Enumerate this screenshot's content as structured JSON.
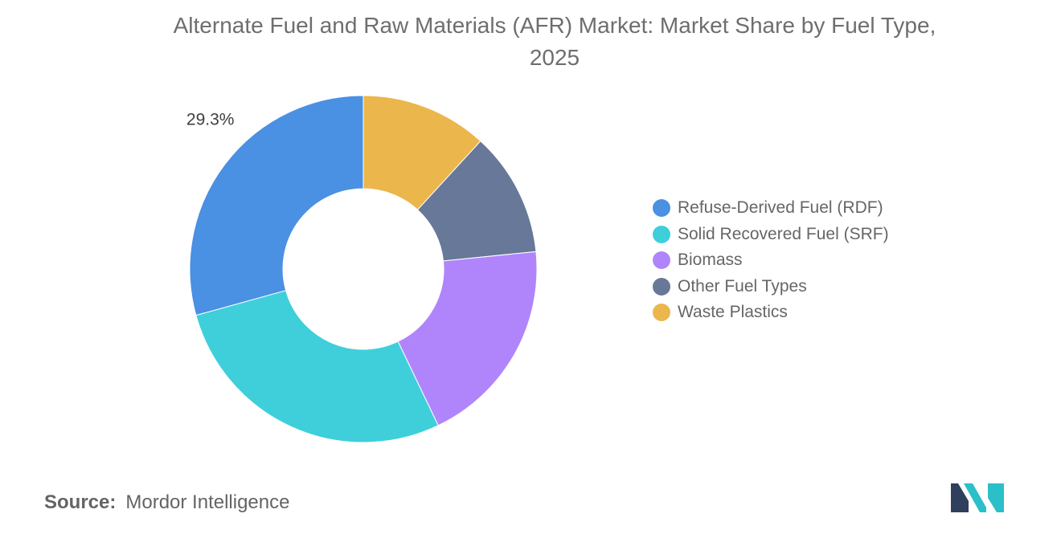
{
  "title_lines": [
    "Alternate Fuel and Raw Materials (AFR) Market: Market Share by Fuel Type,",
    "2025"
  ],
  "chart_data": {
    "type": "pie",
    "variant": "donut",
    "title": "Alternate Fuel and Raw Materials (AFR) Market: Market Share by Fuel Type, 2025",
    "slices": [
      {
        "label": "Waste Plastics",
        "value": 11.8,
        "color": "#EBB64C"
      },
      {
        "label": "Other Fuel Types",
        "value": 11.6,
        "color": "#677898"
      },
      {
        "label": "Biomass",
        "value": 19.5,
        "color": "#B085FB"
      },
      {
        "label": "Solid Recovered Fuel (SRF)",
        "value": 27.8,
        "color": "#3ECFDB"
      },
      {
        "label": "Refuse-Derived Fuel (RDF)",
        "value": 29.3,
        "color": "#4A90E3",
        "data_label": "29.3%"
      }
    ],
    "legend": {
      "position": "right",
      "entries": [
        {
          "label": "Refuse-Derived Fuel (RDF)",
          "color": "#4A90E3"
        },
        {
          "label": "Solid Recovered Fuel (SRF)",
          "color": "#3ECFDB"
        },
        {
          "label": "Biomass",
          "color": "#B085FB"
        },
        {
          "label": "Other Fuel Types",
          "color": "#677898"
        },
        {
          "label": "Waste Plastics",
          "color": "#EBB64C"
        }
      ]
    }
  },
  "source": {
    "label": "Source:",
    "value": "Mordor Intelligence"
  },
  "logo": {
    "icon": "mordor-intelligence-logo-icon",
    "colors": [
      "#2f3f5c",
      "#2bbfc9"
    ]
  }
}
